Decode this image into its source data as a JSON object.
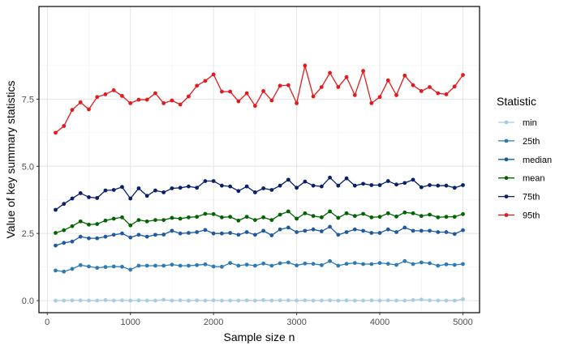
{
  "chart_data": {
    "type": "line",
    "title": "",
    "xlabel": "Sample size n",
    "ylabel": "Value of key summary statistics",
    "xlim": [
      -100,
      5200
    ],
    "ylim": [
      -0.45,
      10.95
    ],
    "x_ticks": [
      0,
      1000,
      2000,
      3000,
      4000,
      5000
    ],
    "x_tick_labels": [
      "0",
      "1000",
      "2000",
      "3000",
      "4000",
      "5000"
    ],
    "y_ticks": [
      0,
      2.5,
      5.0,
      7.5
    ],
    "y_tick_labels": [
      "0.0",
      "2.5",
      "5.0",
      "7.5"
    ],
    "grid": true,
    "legend_title": "Statistic",
    "legend_position": "right",
    "x": [
      100,
      200,
      300,
      400,
      500,
      600,
      700,
      800,
      900,
      1000,
      1100,
      1200,
      1300,
      1400,
      1500,
      1600,
      1700,
      1800,
      1900,
      2000,
      2100,
      2200,
      2300,
      2400,
      2500,
      2600,
      2700,
      2800,
      2900,
      3000,
      3100,
      3200,
      3300,
      3400,
      3500,
      3600,
      3700,
      3800,
      3900,
      4000,
      4100,
      4200,
      4300,
      4400,
      4500,
      4600,
      4700,
      4800,
      4900,
      5000
    ],
    "series": [
      {
        "name": "min",
        "color": "#a6cee3",
        "values": [
          0.0,
          0.0,
          0.01,
          0.01,
          0.0,
          0.0,
          0.02,
          0.0,
          0.01,
          0.0,
          0.01,
          0.0,
          0.0,
          0.03,
          0.0,
          0.01,
          0.0,
          0.01,
          0.0,
          0.01,
          0.0,
          0.0,
          0.0,
          0.01,
          0.0,
          0.02,
          0.0,
          0.01,
          0.01,
          0.0,
          0.01,
          0.0,
          0.0,
          0.01,
          0.0,
          0.01,
          0.0,
          0.0,
          0.01,
          0.0,
          0.01,
          0.0,
          0.0,
          0.02,
          0.04,
          0.01,
          0.0,
          0.0,
          0.0,
          0.05
        ]
      },
      {
        "name": "25th",
        "color": "#2c7bb6",
        "values": [
          1.12,
          1.08,
          1.18,
          1.32,
          1.27,
          1.22,
          1.25,
          1.27,
          1.26,
          1.15,
          1.3,
          1.3,
          1.3,
          1.3,
          1.34,
          1.3,
          1.3,
          1.32,
          1.35,
          1.27,
          1.26,
          1.4,
          1.3,
          1.34,
          1.3,
          1.38,
          1.3,
          1.39,
          1.42,
          1.31,
          1.38,
          1.37,
          1.32,
          1.47,
          1.3,
          1.37,
          1.4,
          1.36,
          1.36,
          1.4,
          1.37,
          1.33,
          1.47,
          1.36,
          1.42,
          1.39,
          1.3,
          1.35,
          1.33,
          1.36
        ]
      },
      {
        "name": "median",
        "color": "#1f5aa0",
        "values": [
          2.05,
          2.15,
          2.2,
          2.38,
          2.32,
          2.32,
          2.38,
          2.45,
          2.5,
          2.35,
          2.45,
          2.38,
          2.45,
          2.46,
          2.6,
          2.5,
          2.52,
          2.55,
          2.63,
          2.5,
          2.5,
          2.52,
          2.45,
          2.55,
          2.45,
          2.6,
          2.43,
          2.65,
          2.72,
          2.55,
          2.6,
          2.65,
          2.58,
          2.75,
          2.45,
          2.55,
          2.65,
          2.6,
          2.52,
          2.52,
          2.65,
          2.55,
          2.72,
          2.6,
          2.6,
          2.6,
          2.55,
          2.55,
          2.48,
          2.62
        ]
      },
      {
        "name": "mean",
        "color": "#006400",
        "values": [
          2.52,
          2.62,
          2.77,
          2.95,
          2.83,
          2.85,
          2.98,
          3.05,
          3.1,
          2.8,
          3.0,
          2.95,
          3.0,
          3.0,
          3.08,
          3.05,
          3.1,
          3.12,
          3.23,
          3.22,
          3.1,
          3.12,
          2.98,
          3.12,
          3.0,
          3.1,
          3.0,
          3.2,
          3.32,
          3.05,
          3.25,
          3.15,
          3.1,
          3.32,
          3.08,
          3.25,
          3.15,
          3.23,
          3.1,
          3.12,
          3.25,
          3.13,
          3.28,
          3.25,
          3.15,
          3.2,
          3.1,
          3.12,
          3.12,
          3.22
        ]
      },
      {
        "name": "75th",
        "color": "#08206b",
        "values": [
          3.38,
          3.6,
          3.8,
          4.0,
          3.85,
          3.82,
          4.1,
          4.12,
          4.23,
          3.8,
          4.18,
          3.9,
          4.1,
          4.03,
          4.18,
          4.2,
          4.25,
          4.2,
          4.45,
          4.45,
          4.28,
          4.25,
          4.08,
          4.25,
          4.03,
          4.18,
          4.12,
          4.28,
          4.5,
          4.2,
          4.43,
          4.28,
          4.25,
          4.58,
          4.28,
          4.55,
          4.28,
          4.35,
          4.3,
          4.3,
          4.45,
          4.32,
          4.38,
          4.5,
          4.22,
          4.3,
          4.28,
          4.28,
          4.2,
          4.3
        ]
      },
      {
        "name": "95th",
        "color": "#e31a1c",
        "values": [
          6.25,
          6.5,
          7.1,
          7.38,
          7.12,
          7.58,
          7.68,
          7.83,
          7.62,
          7.35,
          7.48,
          7.48,
          7.72,
          7.35,
          7.45,
          7.3,
          7.6,
          8.0,
          8.18,
          8.42,
          7.78,
          7.78,
          7.42,
          7.72,
          7.25,
          7.8,
          7.45,
          8.0,
          8.02,
          7.35,
          8.75,
          7.6,
          7.95,
          8.48,
          7.95,
          8.32,
          7.65,
          8.55,
          7.35,
          7.58,
          8.2,
          7.65,
          8.38,
          8.02,
          7.8,
          7.95,
          7.72,
          7.68,
          7.97,
          8.4
        ]
      }
    ]
  }
}
